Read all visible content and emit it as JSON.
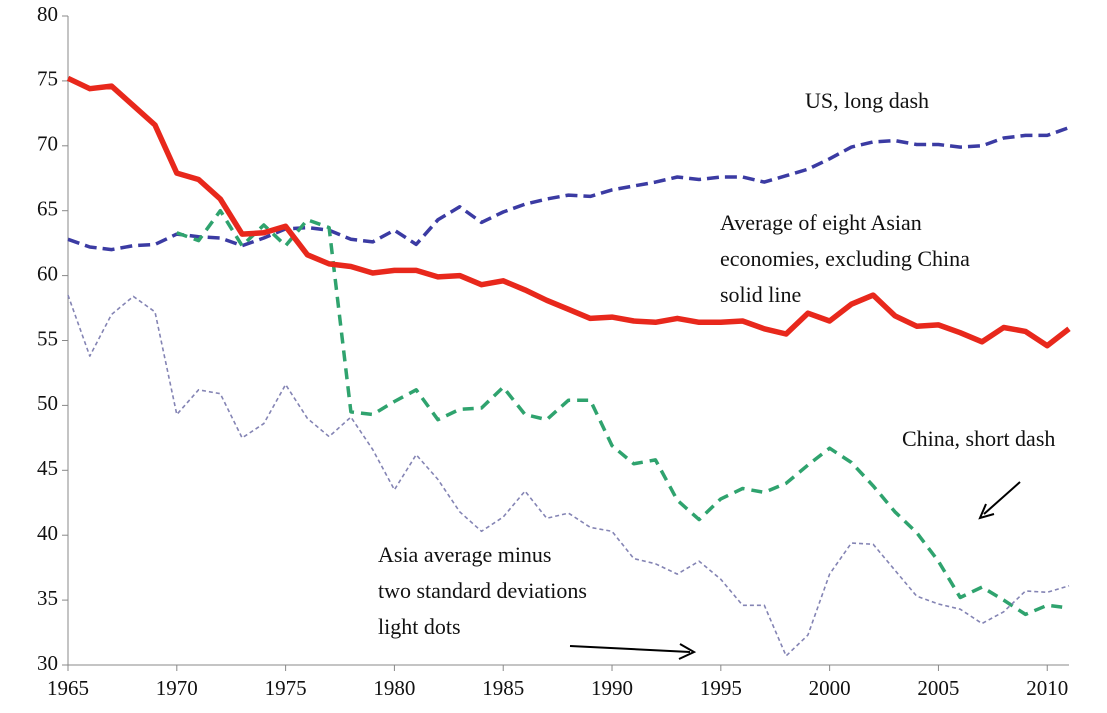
{
  "chart_data": {
    "type": "line",
    "x": [
      1965,
      1966,
      1967,
      1968,
      1969,
      1970,
      1971,
      1972,
      1973,
      1974,
      1975,
      1976,
      1977,
      1978,
      1979,
      1980,
      1981,
      1982,
      1983,
      1984,
      1985,
      1986,
      1987,
      1988,
      1989,
      1990,
      1991,
      1992,
      1993,
      1994,
      1995,
      1996,
      1997,
      1998,
      1999,
      2000,
      2001,
      2002,
      2003,
      2004,
      2005,
      2006,
      2007,
      2008,
      2009,
      2010,
      2011
    ],
    "xlim": [
      1965,
      2011
    ],
    "xticks": [
      1965,
      1970,
      1975,
      1980,
      1985,
      1990,
      1995,
      2000,
      2005,
      2010
    ],
    "ylim": [
      30,
      80
    ],
    "yticks": [
      30,
      35,
      40,
      45,
      50,
      55,
      60,
      65,
      70,
      75,
      80
    ],
    "series": [
      {
        "color": "#3b3ba3",
        "style": "long-dash",
        "values": [
          62.8,
          62.2,
          62.0,
          62.3,
          62.4,
          63.2,
          63.0,
          62.9,
          62.3,
          62.9,
          63.6,
          63.7,
          63.5,
          62.8,
          62.6,
          63.5,
          62.4,
          64.3,
          65.3,
          64.1,
          64.9,
          65.5,
          65.9,
          66.2,
          66.1,
          66.6,
          66.9,
          67.2,
          67.6,
          67.4,
          67.6,
          67.6,
          67.2,
          67.7,
          68.2,
          69.0,
          69.9,
          70.3,
          70.4,
          70.1,
          70.1,
          69.9,
          70.0,
          70.6,
          70.8,
          70.8,
          71.4
        ]
      },
      {
        "color": "#2fa36e",
        "style": "short-dash",
        "values": [
          null,
          null,
          null,
          null,
          null,
          63.3,
          62.7,
          65.0,
          62.3,
          63.9,
          62.3,
          64.3,
          63.7,
          49.5,
          49.3,
          50.3,
          51.2,
          48.9,
          49.7,
          49.8,
          51.4,
          49.3,
          48.9,
          50.4,
          50.4,
          46.9,
          45.5,
          45.8,
          42.7,
          41.2,
          42.8,
          43.6,
          43.3,
          44.0,
          45.4,
          46.7,
          45.6,
          43.8,
          41.8,
          40.2,
          38.0,
          35.2,
          36.0,
          35.0,
          33.9,
          34.6,
          34.4
        ]
      },
      {
        "color": "#e8281c",
        "style": "solid",
        "values": [
          75.2,
          74.4,
          74.6,
          73.1,
          71.6,
          67.9,
          67.4,
          65.9,
          63.2,
          63.3,
          63.8,
          61.6,
          60.9,
          60.7,
          60.2,
          60.4,
          60.4,
          59.9,
          60.0,
          59.3,
          59.6,
          58.9,
          58.1,
          57.4,
          56.7,
          56.8,
          56.5,
          56.4,
          56.7,
          56.4,
          56.4,
          56.5,
          55.9,
          55.5,
          57.1,
          56.5,
          57.8,
          58.5,
          56.9,
          56.1,
          56.2,
          55.6,
          54.9,
          56.0,
          55.7,
          54.6,
          55.9
        ]
      },
      {
        "color": "#8484b4",
        "style": "dots",
        "values": [
          58.5,
          53.8,
          57.0,
          58.4,
          57.2,
          49.3,
          51.2,
          50.9,
          47.5,
          48.6,
          51.6,
          49.0,
          47.6,
          49.1,
          46.6,
          43.5,
          46.2,
          44.3,
          41.8,
          40.3,
          41.4,
          43.4,
          41.3,
          41.7,
          40.6,
          40.3,
          38.2,
          37.8,
          37.0,
          38.0,
          36.6,
          34.6,
          34.6,
          30.7,
          32.3,
          37.0,
          39.4,
          39.3,
          37.3,
          35.3,
          34.7,
          34.3,
          33.2,
          34.1,
          35.7,
          35.6,
          36.1
        ]
      }
    ],
    "annotations": [
      [
        "US, long dash"
      ],
      [
        "Average of  eight Asian",
        "economies, excluding China",
        "solid line"
      ],
      [
        "China, short dash"
      ],
      [
        "Asia average minus",
        "two standard deviations",
        "light dots"
      ]
    ]
  }
}
